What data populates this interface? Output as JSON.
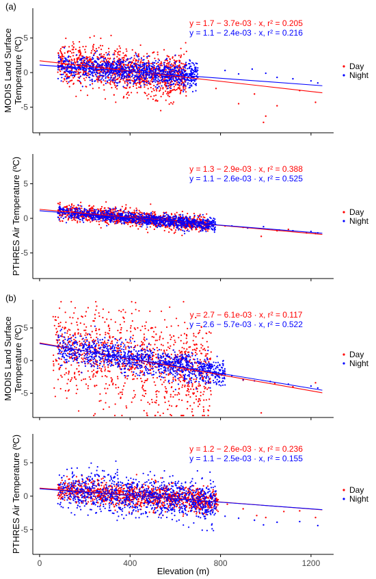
{
  "x_axis": {
    "label": "Elevation (m)",
    "ticks": [
      0,
      400,
      800,
      1200
    ],
    "range": [
      -30,
      1300
    ]
  },
  "panel_labels": [
    "(a)",
    "(b)"
  ],
  "chart_data": [
    {
      "type": "scatter",
      "group": "(a)",
      "ylabel": [
        "MODIS Land Surface",
        "Temperature (ºC)"
      ],
      "ylim": [
        -8.7,
        9.3
      ],
      "yticks": [
        -5,
        0,
        5
      ],
      "xlabel": "",
      "legend_position": "right",
      "series": [
        {
          "name": "Day",
          "color": "#ff0000",
          "intercept": 1.7,
          "slope": -0.0037,
          "r2": 0.205,
          "equation": "y = 1.7 − 3.7e-03 · x,  r² = 0.205",
          "x_range": [
            80,
            650
          ],
          "spread": 1.6,
          "outliers": [
            [
              780,
              -2.3
            ],
            [
              880,
              -4.5
            ],
            [
              950,
              -3.1
            ],
            [
              990,
              -7.2
            ],
            [
              1000,
              -6.3
            ],
            [
              1050,
              -4.8
            ],
            [
              1150,
              -2.6
            ],
            [
              1220,
              -4.3
            ]
          ]
        },
        {
          "name": "Night",
          "color": "#0000ff",
          "intercept": 1.1,
          "slope": -0.0024,
          "r2": 0.216,
          "equation": "y = 1.1 − 2.4e-03 · x,  r² = 0.216",
          "x_range": [
            80,
            700
          ],
          "spread": 0.9,
          "outliers": [
            [
              820,
              0.3
            ],
            [
              880,
              -0.2
            ],
            [
              940,
              0.5
            ],
            [
              1000,
              -0.1
            ],
            [
              1050,
              -0.7
            ],
            [
              1120,
              -0.9
            ],
            [
              1200,
              -1.2
            ],
            [
              1230,
              -1.5
            ]
          ]
        }
      ]
    },
    {
      "type": "scatter",
      "group": "(a)",
      "ylabel": [
        "PTHRES Air Temperature (ºC)"
      ],
      "ylim": [
        -8.7,
        9.3
      ],
      "yticks": [
        -5,
        0,
        5
      ],
      "xlabel": "",
      "legend_position": "right",
      "series": [
        {
          "name": "Day",
          "color": "#ff0000",
          "intercept": 1.3,
          "slope": -0.0029,
          "r2": 0.388,
          "equation": "y = 1.3 − 2.9e-03 · x,  r² = 0.388",
          "x_range": [
            80,
            750
          ],
          "spread": 0.55,
          "outliers": [
            [
              820,
              -1.1
            ],
            [
              900,
              -1.3
            ],
            [
              980,
              -2.6
            ],
            [
              1050,
              -1.8
            ],
            [
              1100,
              -1.6
            ],
            [
              1180,
              -2.1
            ],
            [
              1220,
              -2.2
            ]
          ]
        },
        {
          "name": "Night",
          "color": "#0000ff",
          "intercept": 1.1,
          "slope": -0.0026,
          "r2": 0.525,
          "equation": "y = 1.1 − 2.6e-03 · x,  r² = 0.525",
          "x_range": [
            80,
            780
          ],
          "spread": 0.45,
          "outliers": [
            [
              850,
              -1.1
            ],
            [
              920,
              -1.4
            ],
            [
              990,
              -1.2
            ],
            [
              1060,
              -1.7
            ],
            [
              1120,
              -1.8
            ],
            [
              1200,
              -1.9
            ],
            [
              1230,
              -2.1
            ]
          ]
        }
      ]
    },
    {
      "type": "scatter",
      "group": "(b)",
      "ylabel": [
        "MODIS Land Surface",
        "Temperature (ºC)"
      ],
      "ylim": [
        -8.7,
        9.3
      ],
      "yticks": [
        -5,
        0,
        5
      ],
      "xlabel": "",
      "legend_position": "right",
      "series": [
        {
          "name": "Day",
          "color": "#ff0000",
          "intercept": 2.7,
          "slope": -0.0061,
          "r2": 0.117,
          "equation": "y = 2.7 − 6.1e-03 · x,  r² = 0.117",
          "x_range": [
            60,
            760
          ],
          "spread": 3.4,
          "outliers": [
            [
              820,
              -2.0
            ],
            [
              900,
              -3.0
            ],
            [
              980,
              -8.0
            ],
            [
              1040,
              -3.5
            ],
            [
              1120,
              -4.0
            ],
            [
              1220,
              -3.4
            ]
          ]
        },
        {
          "name": "Night",
          "color": "#0000ff",
          "intercept": 2.6,
          "slope": -0.0057,
          "r2": 0.522,
          "equation": "y = 2.6 − 5.7e-03 · x,  r² = 0.522",
          "x_range": [
            80,
            820
          ],
          "spread": 1.1,
          "outliers": [
            [
              850,
              -2.3
            ],
            [
              900,
              -2.9
            ],
            [
              950,
              -3.1
            ],
            [
              1020,
              -3.2
            ],
            [
              1100,
              -3.6
            ],
            [
              1200,
              -3.9
            ],
            [
              1230,
              -4.2
            ]
          ]
        }
      ]
    },
    {
      "type": "scatter",
      "group": "(b)",
      "ylabel": [
        "PTHRES Air Temperature (ºC)"
      ],
      "ylim": [
        -8.7,
        9.3
      ],
      "yticks": [
        -5,
        0,
        5
      ],
      "xlabel": "Elevation (m)",
      "legend_position": "right",
      "series": [
        {
          "name": "Day",
          "color": "#ff0000",
          "intercept": 1.2,
          "slope": -0.0026,
          "r2": 0.236,
          "equation": "y = 1.2 − 2.6e-03 · x,  r² = 0.236",
          "x_range": [
            80,
            790
          ],
          "spread": 0.9,
          "outliers": [
            [
              830,
              -1.2
            ],
            [
              900,
              -1.9
            ],
            [
              960,
              -2.9
            ],
            [
              1000,
              -3.2
            ],
            [
              1080,
              -2.3
            ],
            [
              1150,
              -2.2
            ],
            [
              1220,
              -3.2
            ]
          ]
        },
        {
          "name": "Night",
          "color": "#0000ff",
          "intercept": 1.1,
          "slope": -0.0025,
          "r2": 0.155,
          "equation": "y = 1.1 − 2.5e-03 · x,  r² = 0.155",
          "x_range": [
            80,
            780
          ],
          "spread": 1.5,
          "outliers": [
            [
              820,
              -3.0
            ],
            [
              880,
              -3.3
            ],
            [
              950,
              -3.6
            ],
            [
              990,
              -4.3
            ],
            [
              1050,
              -3.9
            ],
            [
              1150,
              -3.8
            ],
            [
              1230,
              -4.4
            ]
          ]
        }
      ]
    }
  ]
}
